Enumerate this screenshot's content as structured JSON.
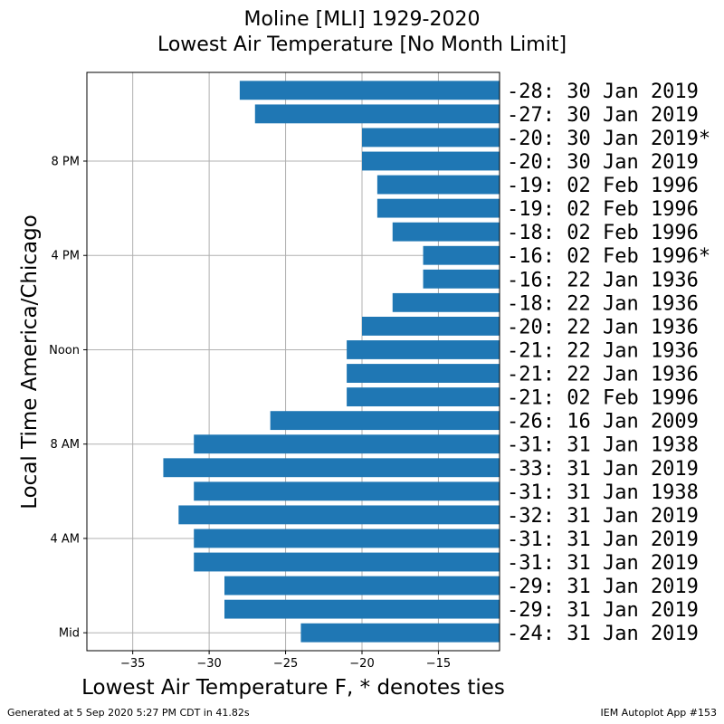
{
  "chart_data": {
    "type": "bar",
    "orientation": "horizontal",
    "title": "Moline [MLI] 1929-2020",
    "subtitle": "Lowest Air Temperature [No Month Limit]",
    "xlabel": "Lowest Air Temperature F, * denotes ties",
    "ylabel": "Local Time America/Chicago",
    "xlim": [
      -38,
      -11
    ],
    "xticks": [
      -35,
      -30,
      -25,
      -20,
      -15
    ],
    "xtick_labels": [
      "−35",
      "−30",
      "−25",
      "−20",
      "−15"
    ],
    "yticks": [
      0,
      4,
      8,
      12,
      16,
      20
    ],
    "ytick_labels": [
      "Mid",
      "4 AM",
      "8 AM",
      "Noon",
      "4 PM",
      "8 PM"
    ],
    "grid": true,
    "bar_color": "#1f77b4",
    "hours": [
      0,
      1,
      2,
      3,
      4,
      5,
      6,
      7,
      8,
      9,
      10,
      11,
      12,
      13,
      14,
      15,
      16,
      17,
      18,
      19,
      20,
      21,
      22,
      23
    ],
    "values": [
      -24,
      -29,
      -29,
      -31,
      -31,
      -32,
      -31,
      -33,
      -31,
      -26,
      -21,
      -21,
      -21,
      -20,
      -18,
      -16,
      -16,
      -18,
      -19,
      -19,
      -20,
      -20,
      -27,
      -28
    ],
    "labels": [
      "-24: 31 Jan 2019",
      "-29: 31 Jan 2019",
      "-29: 31 Jan 2019",
      "-31: 31 Jan 2019",
      "-31: 31 Jan 2019",
      "-32: 31 Jan 2019",
      "-31: 31 Jan 1938",
      "-33: 31 Jan 2019",
      "-31: 31 Jan 1938",
      "-26: 16 Jan 2009",
      "-21: 02 Feb 1996",
      "-21: 22 Jan 1936",
      "-21: 22 Jan 1936",
      "-20: 22 Jan 1936",
      "-18: 22 Jan 1936",
      "-16: 22 Jan 1936",
      "-16: 02 Feb 1996*",
      "-18: 02 Feb 1996",
      "-19: 02 Feb 1996",
      "-19: 02 Feb 1996",
      "-20: 30 Jan 2019",
      "-20: 30 Jan 2019*",
      "-27: 30 Jan 2019",
      "-28: 30 Jan 2019"
    ]
  },
  "footer": {
    "left": "Generated at 5 Sep 2020 5:27 PM CDT in 41.82s",
    "right": "IEM Autoplot App #153"
  }
}
